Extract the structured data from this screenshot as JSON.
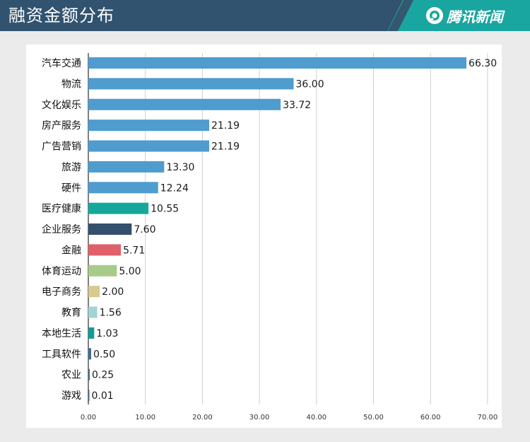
{
  "header": {
    "title": "融资金额分布",
    "brand": "腾讯新闻"
  },
  "chart_data": {
    "type": "bar",
    "orientation": "horizontal",
    "title": "融资金额分布",
    "xlabel": "",
    "ylabel": "",
    "xlim": [
      0,
      70
    ],
    "ticks": [
      "0.00",
      "10.00",
      "20.00",
      "30.00",
      "40.00",
      "50.00",
      "60.00",
      "70.00"
    ],
    "grid": true,
    "categories": [
      "汽车交通",
      "物流",
      "文化娱乐",
      "房产服务",
      "广告营销",
      "旅游",
      "硬件",
      "医疗健康",
      "企业服务",
      "金融",
      "体育运动",
      "电子商务",
      "教育",
      "本地生活",
      "工具软件",
      "农业",
      "游戏"
    ],
    "values": [
      66.3,
      36.0,
      33.72,
      21.19,
      21.19,
      13.3,
      12.24,
      10.55,
      7.6,
      5.71,
      5.0,
      2.0,
      1.56,
      1.03,
      0.5,
      0.25,
      0.01
    ],
    "value_labels": [
      "66.30",
      "36.00",
      "33.72",
      "21.19",
      "21.19",
      "13.30",
      "12.24",
      "10.55",
      "7.60",
      "5.71",
      "5.00",
      "2.00",
      "1.56",
      "1.03",
      "0.50",
      "0.25",
      "0.01"
    ],
    "colors": [
      "#4f9ccf",
      "#4f9ccf",
      "#4f9ccf",
      "#4f9ccf",
      "#4f9ccf",
      "#4f9ccf",
      "#4f9ccf",
      "#15a89a",
      "#35506c",
      "#e0606a",
      "#a8cb8a",
      "#d8c98e",
      "#a3d3d4",
      "#149b94",
      "#3f6f8f",
      "#3f6f8f",
      "#3f6f8f"
    ]
  }
}
